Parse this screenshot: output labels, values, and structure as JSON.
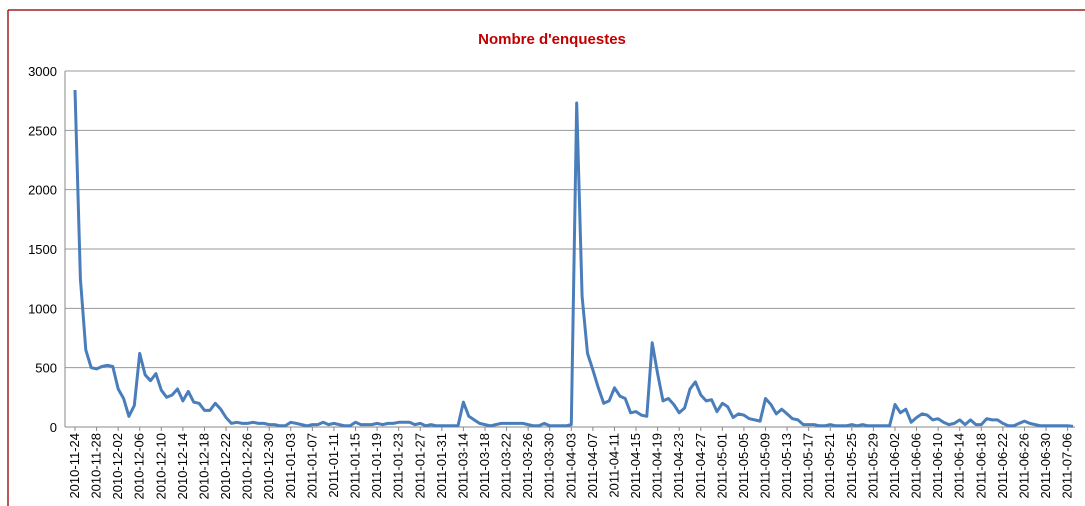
{
  "chart_data": {
    "type": "line",
    "title": "Nombre d'enquestes",
    "categories": [
      "2010-11-24",
      null,
      null,
      null,
      "2010-11-28",
      null,
      null,
      null,
      "2010-12-02",
      null,
      null,
      null,
      "2010-12-06",
      null,
      null,
      null,
      "2010-12-10",
      null,
      null,
      null,
      "2010-12-14",
      null,
      null,
      null,
      "2010-12-18",
      null,
      null,
      null,
      "2010-12-22",
      null,
      null,
      null,
      "2010-12-26",
      null,
      null,
      null,
      "2010-12-30",
      null,
      null,
      null,
      "2011-01-03",
      null,
      null,
      null,
      "2011-01-07",
      null,
      null,
      null,
      "2011-01-11",
      null,
      null,
      null,
      "2011-01-15",
      null,
      null,
      null,
      "2011-01-19",
      null,
      null,
      null,
      "2011-01-23",
      null,
      null,
      null,
      "2011-01-27",
      null,
      null,
      null,
      "2011-01-31",
      null,
      null,
      null,
      "2011-03-14",
      null,
      null,
      null,
      "2011-03-18",
      null,
      null,
      null,
      "2011-03-22",
      null,
      null,
      null,
      "2011-03-26",
      null,
      null,
      null,
      "2011-03-30",
      null,
      null,
      null,
      "2011-04-03",
      null,
      null,
      null,
      "2011-04-07",
      null,
      null,
      null,
      "2011-04-11",
      null,
      null,
      null,
      "2011-04-15",
      null,
      null,
      null,
      "2011-04-19",
      null,
      null,
      null,
      "2011-04-23",
      null,
      null,
      null,
      "2011-04-27",
      null,
      null,
      null,
      "2011-05-01",
      null,
      null,
      null,
      "2011-05-05",
      null,
      null,
      null,
      "2011-05-09",
      null,
      null,
      null,
      "2011-05-13",
      null,
      null,
      null,
      "2011-05-17",
      null,
      null,
      null,
      "2011-05-21",
      null,
      null,
      null,
      "2011-05-25",
      null,
      null,
      null,
      "2011-05-29",
      null,
      null,
      null,
      "2011-06-02",
      null,
      null,
      null,
      "2011-06-06",
      null,
      null,
      null,
      "2011-06-10",
      null,
      null,
      null,
      "2011-06-14",
      null,
      null,
      null,
      "2011-06-18",
      null,
      null,
      null,
      "2011-06-22",
      null,
      null,
      null,
      "2011-06-26",
      null,
      null,
      null,
      "2011-06-30",
      null,
      null,
      null,
      "2011-07-06",
      null
    ],
    "series": [
      {
        "name": "Nombre d'enquestes",
        "color": "#4a7ebb",
        "values": [
          2840,
          1250,
          650,
          500,
          490,
          510,
          520,
          510,
          320,
          240,
          90,
          180,
          620,
          440,
          390,
          450,
          310,
          250,
          270,
          320,
          220,
          300,
          210,
          200,
          140,
          140,
          200,
          150,
          80,
          30,
          40,
          30,
          30,
          40,
          30,
          30,
          20,
          20,
          10,
          10,
          40,
          30,
          20,
          10,
          20,
          20,
          40,
          20,
          30,
          20,
          10,
          10,
          40,
          20,
          20,
          20,
          30,
          20,
          30,
          30,
          40,
          40,
          40,
          20,
          30,
          10,
          20,
          10,
          10,
          10,
          10,
          10,
          210,
          90,
          60,
          30,
          20,
          10,
          20,
          30,
          30,
          30,
          30,
          30,
          20,
          10,
          10,
          30,
          10,
          10,
          10,
          10,
          20,
          2730,
          1100,
          620,
          480,
          330,
          200,
          220,
          330,
          260,
          240,
          120,
          130,
          100,
          90,
          710,
          450,
          220,
          240,
          190,
          120,
          160,
          320,
          380,
          270,
          220,
          230,
          130,
          200,
          170,
          80,
          110,
          100,
          70,
          60,
          50,
          240,
          190,
          110,
          150,
          110,
          70,
          60,
          20,
          20,
          20,
          10,
          10,
          20,
          10,
          10,
          10,
          20,
          10,
          20,
          10,
          10,
          10,
          10,
          10,
          190,
          120,
          150,
          40,
          80,
          110,
          100,
          60,
          70,
          40,
          20,
          30,
          60,
          20,
          60,
          20,
          20,
          70,
          60,
          60,
          30,
          10,
          10,
          30,
          50,
          30,
          20,
          10,
          10,
          10,
          10,
          10,
          10,
          5
        ]
      }
    ],
    "ylim": [
      0,
      3000
    ],
    "yticks": [
      0,
      500,
      1000,
      1500,
      2000,
      2500,
      3000
    ],
    "grid": true
  }
}
